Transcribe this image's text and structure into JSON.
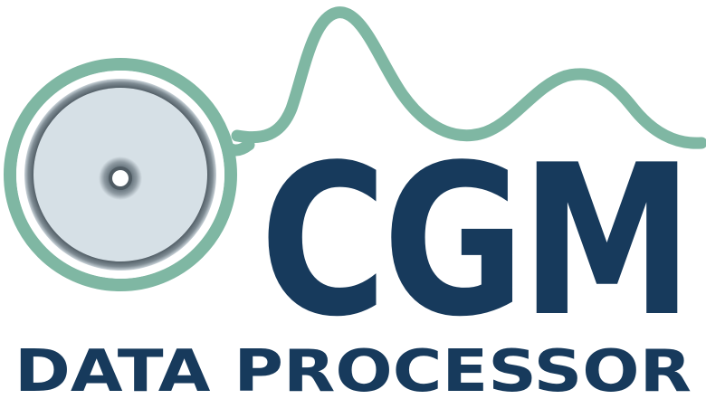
{
  "logo": {
    "wordmark": "CGM",
    "tagline": "DATA PROCESSOR",
    "colors": {
      "navy": "#173a5c",
      "teal": "#7fb7a3",
      "disc_fill": "#d6e0e6",
      "disc_ring": "#5c6a73"
    },
    "icons": [
      "sensor-disc-icon",
      "glucose-trace-icon"
    ]
  }
}
